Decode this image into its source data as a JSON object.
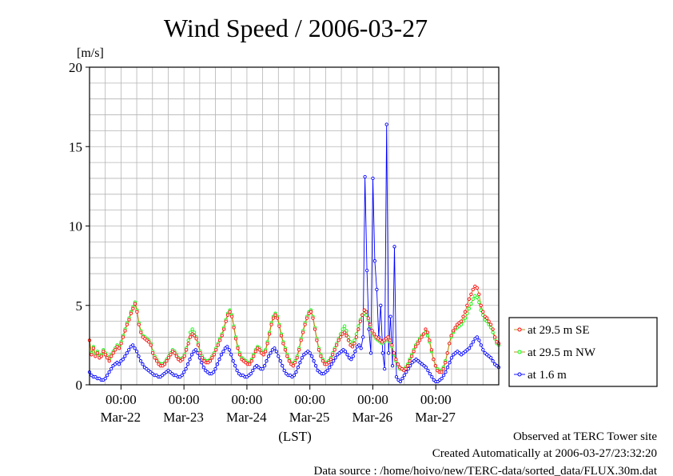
{
  "chart_data": {
    "type": "line",
    "title": "Wind Speed / 2006-03-27",
    "ylabel": "[m/s]",
    "xlabel": "(LST)",
    "ylim": [
      0,
      20
    ],
    "yticks": [
      0,
      5,
      10,
      15,
      20
    ],
    "xlim": [
      "2006-03-21 12:00",
      "2006-03-27 24:00"
    ],
    "x_time_ticks": [
      "00:00",
      "00:00",
      "00:00",
      "00:00",
      "00:00",
      "00:00"
    ],
    "x_date_labels": [
      "Mar-22",
      "Mar-23",
      "Mar-24",
      "Mar-25",
      "Mar-26",
      "Mar-27"
    ],
    "grid": true,
    "legend_position": "right",
    "series": [
      {
        "name": "at 29.5 m SE",
        "color": "#ff0000",
        "line_color": "#b8860b",
        "values": [
          2.8,
          1.9,
          2.3,
          1.8,
          2.0,
          1.7,
          1.8,
          2.1,
          1.9,
          1.7,
          1.5,
          1.8,
          2.0,
          2.2,
          2.4,
          2.3,
          2.6,
          3.0,
          3.4,
          3.8,
          4.1,
          4.5,
          4.8,
          5.1,
          4.6,
          3.8,
          3.3,
          3.0,
          2.9,
          2.8,
          2.7,
          2.5,
          2.0,
          1.7,
          1.5,
          1.3,
          1.2,
          1.2,
          1.3,
          1.5,
          1.7,
          1.9,
          2.1,
          2.0,
          1.8,
          1.6,
          1.5,
          1.6,
          1.8,
          2.2,
          2.6,
          3.0,
          3.2,
          3.1,
          2.9,
          2.5,
          2.0,
          1.7,
          1.5,
          1.4,
          1.4,
          1.5,
          1.7,
          1.9,
          2.2,
          2.5,
          2.8,
          3.1,
          3.5,
          4.0,
          4.4,
          4.6,
          4.3,
          3.6,
          2.9,
          2.3,
          1.9,
          1.6,
          1.5,
          1.4,
          1.3,
          1.3,
          1.5,
          1.8,
          2.1,
          2.3,
          2.2,
          2.0,
          1.9,
          2.1,
          2.6,
          3.2,
          3.8,
          4.2,
          4.4,
          4.2,
          3.7,
          3.1,
          2.6,
          2.2,
          1.8,
          1.5,
          1.3,
          1.2,
          1.4,
          1.7,
          2.2,
          2.8,
          3.3,
          3.8,
          4.2,
          4.5,
          4.6,
          4.2,
          3.5,
          2.8,
          2.2,
          1.8,
          1.5,
          1.3,
          1.3,
          1.4,
          1.6,
          1.9,
          2.2,
          2.5,
          2.8,
          3.0,
          3.2,
          3.3,
          3.1,
          2.8,
          2.5,
          2.4,
          2.6,
          3.0,
          3.5,
          4.0,
          4.4,
          4.7,
          4.6,
          4.2,
          3.8,
          3.4,
          3.2,
          3.0,
          2.9,
          2.8,
          2.7,
          2.8,
          2.9,
          3.0,
          2.8,
          2.5,
          2.0,
          1.6,
          1.3,
          1.1,
          1.0,
          0.9,
          1.0,
          1.2,
          1.5,
          1.8,
          2.1,
          2.4,
          2.6,
          2.8,
          3.0,
          3.2,
          3.5,
          3.3,
          2.8,
          2.2,
          1.6,
          1.2,
          0.9,
          0.8,
          0.8,
          1.0,
          1.4,
          2.0,
          2.6,
          3.1,
          3.4,
          3.6,
          3.8,
          3.9,
          4.0,
          4.3,
          4.6,
          5.0,
          5.4,
          5.7,
          6.0,
          6.2,
          6.1,
          5.7,
          5.0,
          4.6,
          4.3,
          4.2,
          4.0,
          3.8,
          3.5,
          3.0,
          2.7,
          2.6
        ]
      },
      {
        "name": "at 29.5 m NW",
        "color": "#00ff00",
        "line_color": "#b8860b",
        "values": [
          2.8,
          2.0,
          2.4,
          1.9,
          2.1,
          1.8,
          1.9,
          2.2,
          2.0,
          1.8,
          1.6,
          1.9,
          2.1,
          2.3,
          2.5,
          2.4,
          2.7,
          3.1,
          3.5,
          3.9,
          4.2,
          4.6,
          4.9,
          5.2,
          4.7,
          3.9,
          3.4,
          3.1,
          3.0,
          2.9,
          2.8,
          2.6,
          2.1,
          1.8,
          1.6,
          1.4,
          1.3,
          1.3,
          1.4,
          1.6,
          1.8,
          2.0,
          2.2,
          2.1,
          1.9,
          1.7,
          1.6,
          1.7,
          1.9,
          2.3,
          2.8,
          3.3,
          3.5,
          3.3,
          3.0,
          2.6,
          2.1,
          1.8,
          1.6,
          1.5,
          1.5,
          1.6,
          1.8,
          2.0,
          2.3,
          2.6,
          2.9,
          3.2,
          3.6,
          4.1,
          4.5,
          4.7,
          4.4,
          3.7,
          3.0,
          2.4,
          2.0,
          1.7,
          1.6,
          1.5,
          1.4,
          1.4,
          1.6,
          1.9,
          2.2,
          2.4,
          2.3,
          2.1,
          2.0,
          2.2,
          2.7,
          3.3,
          3.9,
          4.3,
          4.5,
          4.3,
          3.8,
          3.2,
          2.7,
          2.3,
          1.9,
          1.6,
          1.4,
          1.3,
          1.5,
          1.8,
          2.3,
          2.9,
          3.4,
          3.9,
          4.3,
          4.6,
          4.7,
          4.3,
          3.6,
          2.9,
          2.3,
          1.9,
          1.6,
          1.4,
          1.4,
          1.5,
          1.7,
          2.0,
          2.3,
          2.6,
          2.9,
          3.2,
          3.5,
          3.7,
          3.4,
          3.0,
          2.7,
          2.6,
          2.8,
          3.2,
          3.7,
          4.1,
          4.4,
          4.5,
          4.4,
          4.1,
          3.7,
          3.3,
          3.1,
          2.9,
          2.8,
          2.7,
          2.6,
          2.7,
          2.8,
          2.9,
          2.7,
          2.4,
          1.9,
          1.5,
          1.2,
          1.0,
          1.0,
          1.0,
          1.1,
          1.3,
          1.6,
          1.9,
          2.2,
          2.5,
          2.7,
          2.9,
          3.1,
          3.2,
          3.3,
          3.1,
          2.7,
          2.1,
          1.6,
          1.2,
          1.0,
          0.9,
          0.9,
          1.1,
          1.5,
          2.0,
          2.6,
          3.0,
          3.3,
          3.5,
          3.6,
          3.7,
          3.8,
          4.0,
          4.2,
          4.5,
          4.8,
          5.1,
          5.4,
          5.6,
          5.5,
          5.2,
          4.7,
          4.4,
          4.1,
          4.0,
          3.8,
          3.6,
          3.3,
          2.9,
          2.6,
          2.5
        ]
      },
      {
        "name": "at 1.6 m",
        "color": "#0000ff",
        "line_color": "#0000ff",
        "values": [
          0.8,
          0.6,
          0.5,
          0.5,
          0.4,
          0.4,
          0.3,
          0.3,
          0.4,
          0.6,
          0.8,
          1.0,
          1.2,
          1.3,
          1.4,
          1.3,
          1.5,
          1.6,
          1.8,
          2.0,
          2.2,
          2.4,
          2.5,
          2.3,
          2.1,
          1.8,
          1.5,
          1.3,
          1.1,
          1.0,
          0.9,
          0.8,
          0.7,
          0.6,
          0.6,
          0.5,
          0.5,
          0.6,
          0.7,
          0.8,
          0.9,
          0.8,
          0.7,
          0.6,
          0.6,
          0.5,
          0.5,
          0.6,
          0.8,
          1.0,
          1.3,
          1.6,
          1.9,
          2.1,
          2.2,
          2.0,
          1.7,
          1.4,
          1.1,
          0.9,
          0.8,
          0.7,
          0.7,
          0.8,
          1.0,
          1.3,
          1.6,
          1.9,
          2.1,
          2.3,
          2.4,
          2.2,
          1.9,
          1.5,
          1.2,
          0.9,
          0.7,
          0.6,
          0.6,
          0.5,
          0.5,
          0.6,
          0.7,
          0.9,
          1.1,
          1.2,
          1.1,
          1.0,
          1.0,
          1.2,
          1.5,
          1.8,
          2.0,
          2.2,
          2.3,
          2.1,
          1.8,
          1.5,
          1.2,
          0.9,
          0.7,
          0.6,
          0.6,
          0.5,
          0.6,
          0.8,
          1.1,
          1.4,
          1.7,
          1.9,
          2.0,
          2.1,
          2.0,
          1.8,
          1.5,
          1.2,
          0.9,
          0.8,
          0.7,
          0.7,
          0.8,
          0.9,
          1.1,
          1.3,
          1.5,
          1.7,
          1.9,
          2.0,
          2.1,
          2.2,
          2.1,
          1.9,
          1.7,
          1.6,
          1.8,
          2.1,
          2.4,
          2.5,
          2.3,
          3.0,
          13.1,
          7.2,
          3.5,
          2.0,
          13.0,
          7.8,
          6.0,
          3.0,
          5.0,
          2.0,
          1.0,
          16.4,
          2.0,
          4.3,
          1.2,
          8.7,
          0.5,
          0.3,
          0.2,
          0.4,
          0.6,
          0.8,
          1.0,
          1.2,
          1.4,
          1.5,
          1.6,
          1.5,
          1.4,
          1.3,
          1.2,
          1.1,
          0.9,
          0.7,
          0.5,
          0.3,
          0.2,
          0.2,
          0.3,
          0.4,
          0.6,
          0.8,
          1.1,
          1.4,
          1.7,
          1.9,
          2.0,
          2.1,
          2.0,
          1.9,
          2.0,
          2.1,
          2.2,
          2.3,
          2.5,
          2.7,
          2.9,
          3.0,
          2.8,
          2.5,
          2.2,
          2.0,
          1.9,
          1.8,
          1.7,
          1.5,
          1.3,
          1.2,
          1.1
        ]
      }
    ]
  },
  "footer": {
    "observed": "Observed at TERC Tower site",
    "created": "Created Automatically at 2006-03-27/23:32:20",
    "source": "Data source : /home/hoivo/new/TERC-data/sorted_data/FLUX.30m.dat"
  }
}
